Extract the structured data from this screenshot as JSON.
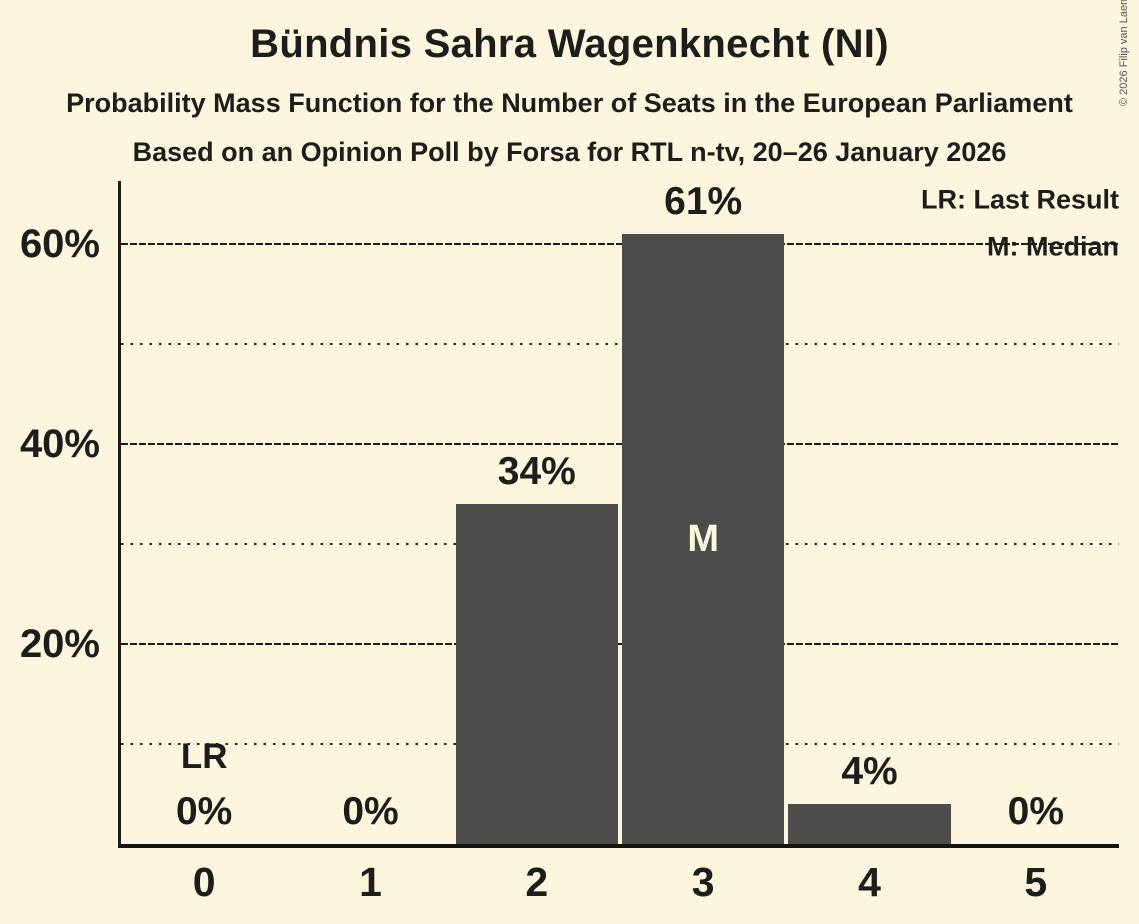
{
  "page": {
    "background_color": "#FCF6DF",
    "text_color": "#1D1D1B"
  },
  "header": {
    "title": "Bündnis Sahra Wagenknecht (NI)",
    "subtitle1": "Probability Mass Function for the Number of Seats in the European Parliament",
    "subtitle2": "Based on an Opinion Poll by Forsa for RTL n-tv, 20–26 January 2026",
    "copyright": "© 2026 Filip van Laenen"
  },
  "legend": {
    "lr": "LR: Last Result",
    "m": "M: Median"
  },
  "chart_data": {
    "type": "bar",
    "title": "Bündnis Sahra Wagenknecht (NI)",
    "categories": [
      "0",
      "1",
      "2",
      "3",
      "4",
      "5"
    ],
    "values": [
      0,
      0,
      34,
      61,
      4,
      0
    ],
    "bar_labels": [
      "0%",
      "0%",
      "34%",
      "61%",
      "4%",
      "0%"
    ],
    "ylim": [
      0,
      66.3
    ],
    "yticks": [
      {
        "value": 20,
        "label": "20%"
      },
      {
        "value": 40,
        "label": "40%"
      },
      {
        "value": 60,
        "label": "60%"
      }
    ],
    "major_gridlines": [
      20,
      40,
      60
    ],
    "minor_gridlines": [
      10,
      30,
      50
    ],
    "annotations": {
      "last_result": {
        "seat_index": 0,
        "label": "LR"
      },
      "median": {
        "seat_index": 3,
        "label": "M"
      }
    },
    "legend_entries": [
      "LR: Last Result",
      "M: Median"
    ],
    "legend_position": "top-right",
    "grid": true,
    "colors": {
      "bar": "#4C4C4B",
      "background": "#FCF6DF",
      "text": "#1D1D1B"
    }
  }
}
